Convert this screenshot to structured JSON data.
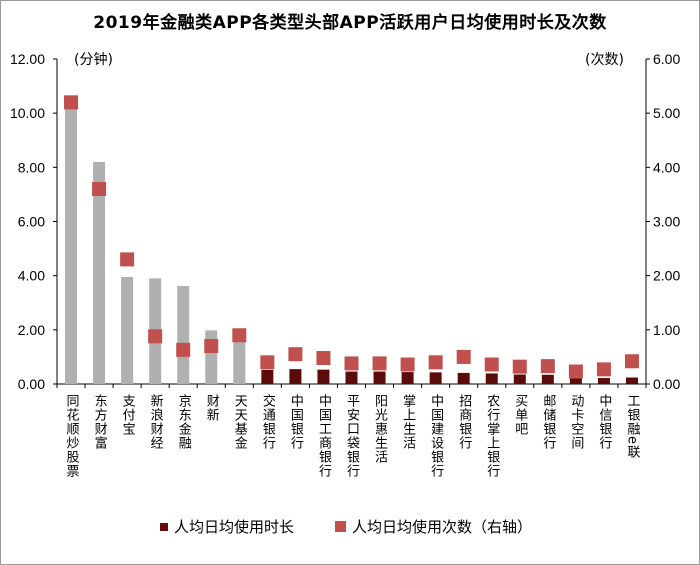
{
  "chart_data": {
    "type": "bar",
    "title": "2019年金融类APP各类型头部APP活跃用户日均使用时长及次数",
    "y_left_label": "(分钟)",
    "y_right_label": "(次数)",
    "ylim_left": [
      0,
      12
    ],
    "ylim_right": [
      0,
      6
    ],
    "y_left_ticks": [
      "0.00",
      "2.00",
      "4.00",
      "6.00",
      "8.00",
      "10.00",
      "12.00"
    ],
    "y_right_ticks": [
      "0.00",
      "1.00",
      "2.00",
      "3.00",
      "4.00",
      "5.00",
      "6.00"
    ],
    "categories": [
      "同花顺炒股票",
      "东方财富",
      "支付宝",
      "新浪财经",
      "京东金融",
      "财新",
      "天天基金",
      "交通银行",
      "中国银行",
      "中国工商银行",
      "平安口袋银行",
      "阳光惠生活",
      "掌上生活",
      "中国建设银行",
      "招商银行",
      "农行掌上银行",
      "买单吧",
      "邮储银行",
      "动卡空间",
      "中信银行",
      "工银融e联"
    ],
    "series": [
      {
        "name": "人均日均使用时长",
        "axis": "left",
        "kind": "bar",
        "values": [
          10.2,
          8.2,
          3.95,
          3.9,
          3.62,
          1.98,
          1.8,
          0.52,
          0.55,
          0.53,
          0.46,
          0.46,
          0.44,
          0.43,
          0.41,
          0.39,
          0.35,
          0.34,
          0.22,
          0.22,
          0.24
        ],
        "colors": [
          "#b0b0b0",
          "#b0b0b0",
          "#b0b0b0",
          "#b0b0b0",
          "#b0b0b0",
          "#b0b0b0",
          "#b0b0b0",
          "#5c0b0b",
          "#5c0b0b",
          "#5c0b0b",
          "#5c0b0b",
          "#5c0b0b",
          "#5c0b0b",
          "#5c0b0b",
          "#5c0b0b",
          "#5c0b0b",
          "#5c0b0b",
          "#5c0b0b",
          "#5c0b0b",
          "#5c0b0b",
          "#5c0b0b"
        ]
      },
      {
        "name": "人均日均使用次数（右轴）",
        "axis": "right",
        "kind": "marker",
        "values": [
          5.2,
          3.6,
          2.3,
          0.88,
          0.63,
          0.7,
          0.9,
          0.4,
          0.55,
          0.48,
          0.38,
          0.38,
          0.36,
          0.4,
          0.5,
          0.36,
          0.32,
          0.33,
          0.23,
          0.27,
          0.42
        ],
        "color": "#c0504d"
      }
    ]
  }
}
